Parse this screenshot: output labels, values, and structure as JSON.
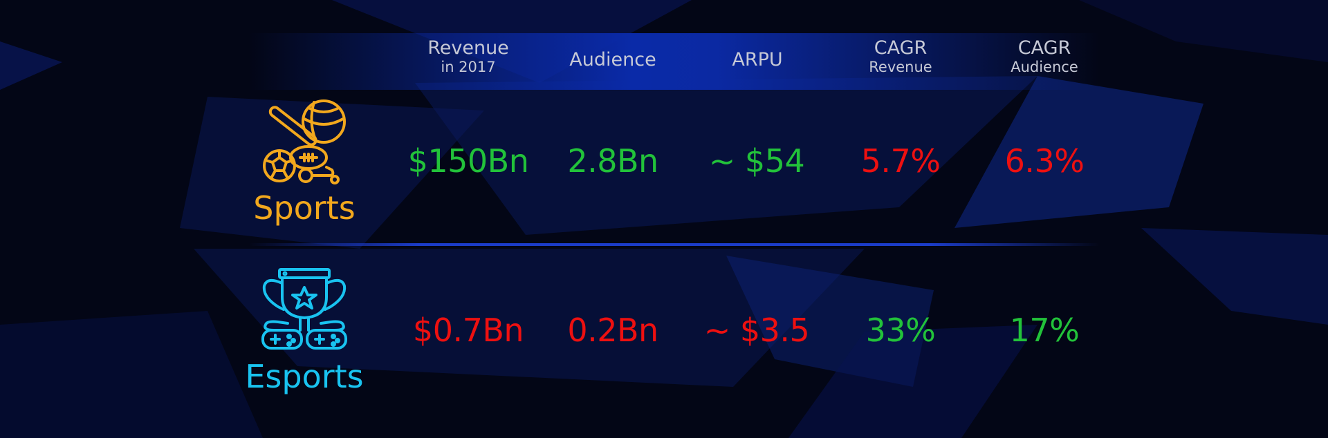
{
  "colors": {
    "sports_accent": "#f2a81d",
    "esports_accent": "#19c3f0",
    "positive": "#22c23a",
    "negative": "#ee1010",
    "header_text": "#c6c9d6"
  },
  "columns": [
    {
      "main": "Revenue",
      "sub": "in 2017"
    },
    {
      "main": "Audience",
      "sub": ""
    },
    {
      "main": "ARPU",
      "sub": ""
    },
    {
      "main": "CAGR",
      "sub": "Revenue"
    },
    {
      "main": "CAGR",
      "sub": "Audience"
    }
  ],
  "rows": [
    {
      "label": "Sports",
      "icon": "sports-equipment-icon",
      "values": [
        "$150Bn",
        "2.8Bn",
        "~ $54",
        "5.7%",
        "6.3%"
      ],
      "status": [
        "positive",
        "positive",
        "positive",
        "negative",
        "negative"
      ]
    },
    {
      "label": "Esports",
      "icon": "trophy-gamepads-icon",
      "values": [
        "$0.7Bn",
        "0.2Bn",
        "~ $3.5",
        "33%",
        "17%"
      ],
      "status": [
        "negative",
        "negative",
        "negative",
        "positive",
        "positive"
      ]
    }
  ]
}
